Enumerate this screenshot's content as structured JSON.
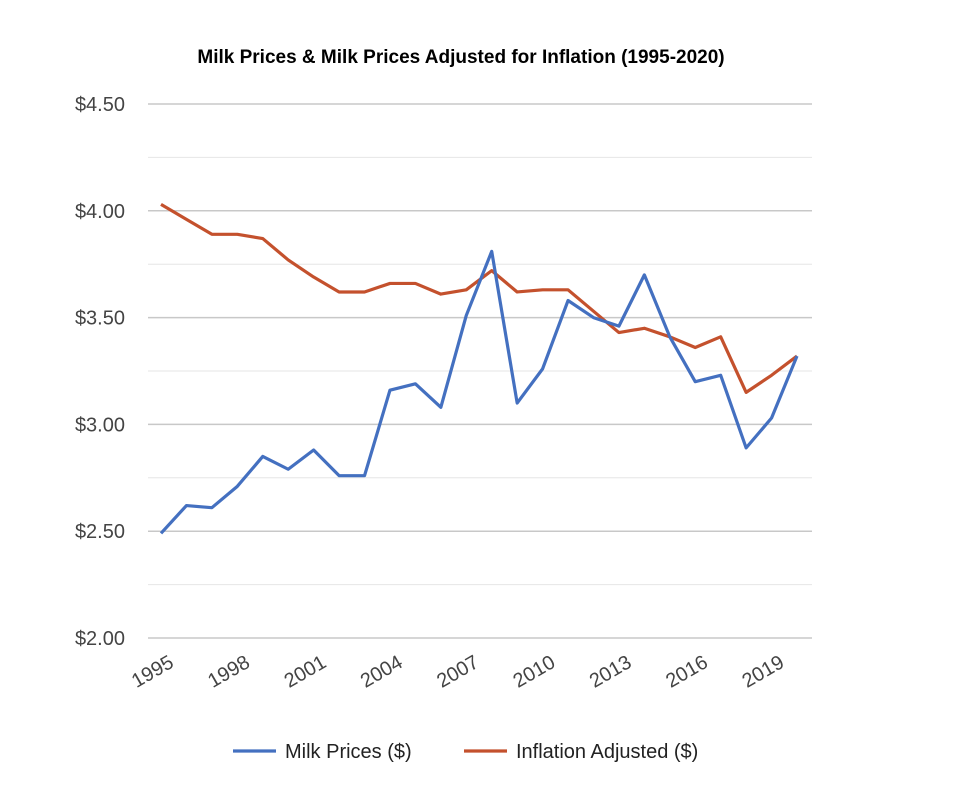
{
  "chart_data": {
    "type": "line",
    "title": "Milk Prices & Milk Prices Adjusted for Inflation (1995-2020)",
    "xlabel": "",
    "ylabel": "",
    "x": [
      1995,
      1996,
      1997,
      1998,
      1999,
      2000,
      2001,
      2002,
      2003,
      2004,
      2005,
      2006,
      2007,
      2008,
      2009,
      2010,
      2011,
      2012,
      2013,
      2014,
      2015,
      2016,
      2017,
      2018,
      2019,
      2020
    ],
    "x_ticks": [
      "1995",
      "1998",
      "2001",
      "2004",
      "2007",
      "2010",
      "2013",
      "2016",
      "2019"
    ],
    "y_ticks": [
      "$2.00",
      "$2.50",
      "$3.00",
      "$3.50",
      "$4.00",
      "$4.50"
    ],
    "y_tick_values": [
      2.0,
      2.5,
      3.0,
      3.5,
      4.0,
      4.5
    ],
    "ylim": [
      2.0,
      4.5
    ],
    "grid": true,
    "legend_position": "bottom",
    "series": [
      {
        "name": "Milk Prices ($)",
        "color": "#4470c0",
        "values": [
          2.49,
          2.62,
          2.61,
          2.71,
          2.85,
          2.79,
          2.88,
          2.76,
          2.76,
          3.16,
          3.19,
          3.08,
          3.51,
          3.81,
          3.1,
          3.26,
          3.58,
          3.5,
          3.46,
          3.7,
          3.41,
          3.2,
          3.23,
          2.89,
          3.03,
          3.32
        ]
      },
      {
        "name": "Inflation Adjusted ($)",
        "color": "#c4512d",
        "values": [
          4.03,
          3.96,
          3.89,
          3.89,
          3.87,
          3.77,
          3.69,
          3.62,
          3.62,
          3.66,
          3.66,
          3.61,
          3.63,
          3.72,
          3.62,
          3.63,
          3.63,
          3.53,
          3.43,
          3.45,
          3.41,
          3.36,
          3.41,
          3.15,
          3.23,
          3.32
        ]
      }
    ]
  }
}
